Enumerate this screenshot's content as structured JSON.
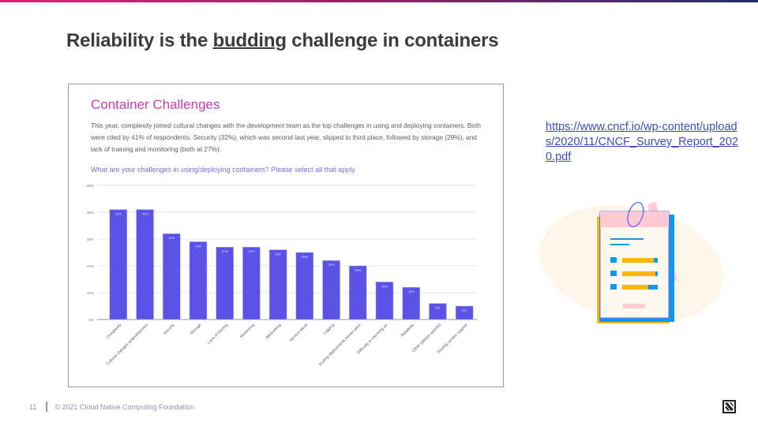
{
  "slide": {
    "title_before": "Reliability is the ",
    "title_emphasis": "budding",
    "title_after": " challenge in containers",
    "source_link": "https://www.cncf.io/wp-content/uploads/2020/11/CNCF_Survey_Report_2020.pdf",
    "page_number": "11",
    "copyright": "© 2021 Cloud Native Computing Foundation",
    "colors": {
      "accent_pink": "#e91e74",
      "accent_navy": "#22306a",
      "bar": "#5b52e6",
      "link": "#3b4fc0"
    }
  },
  "card": {
    "heading": "Container Challenges",
    "description": "This year, complexity joined cultural changes with the development team as the top challenges in using and deploying containers. Both were cited by 41% of respondents. Security (32%), which was second last year, slipped to third place, followed by storage (29%), and lack of training and monitoring (both at 27%).",
    "question": "What are your challenges in using/deploying containers? Please select all that apply"
  },
  "chart_data": {
    "type": "bar",
    "title": "What are your challenges in using/deploying containers? Please select all that apply",
    "xlabel": "",
    "ylabel": "",
    "ylim": [
      0,
      50
    ],
    "yticks": [
      "0%",
      "10%",
      "20%",
      "30%",
      "40%",
      "50%"
    ],
    "grid": true,
    "legend": "none",
    "categories": [
      "Complexity",
      "Cultural changes w/development",
      "Security",
      "Storage",
      "Lack of training",
      "Monitoring",
      "Networking",
      "Service Mesh",
      "Logging",
      "Scaling deployments based upon",
      "Difficulty in choosing an",
      "Reliability",
      "Other (please specify)",
      "Finding vendor support"
    ],
    "values": [
      41,
      41,
      32,
      29,
      27,
      27,
      26,
      25,
      22,
      20,
      14,
      12,
      6,
      5
    ],
    "labels": [
      "41%",
      "41%",
      "32%",
      "29%",
      "27%",
      "27%",
      "26%",
      "25%",
      "22%",
      "20%",
      "14%",
      "12%",
      "6%",
      "5%"
    ]
  }
}
